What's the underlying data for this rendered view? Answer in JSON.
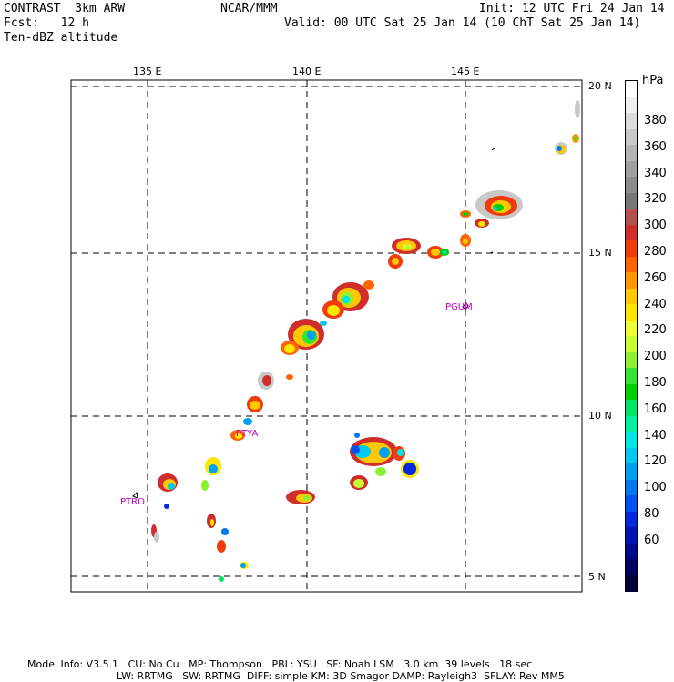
{
  "header": {
    "left_line1": "CONTRAST  3km ARW",
    "left_line2": "Fcst:   12 h",
    "left_line3": "Ten-dBZ altitude",
    "center_line1": "NCAR/MMM",
    "right_line1": "Init: 12 UTC Fri 24 Jan 14",
    "right_line2": "Valid: 00 UTC Sat 25 Jan 14 (10 ChT Sat 25 Jan 14)"
  },
  "map": {
    "lon_labels": [
      "135 E",
      "140 E",
      "145 E"
    ],
    "lat_labels": [
      "20 N",
      "15 N",
      "10 N",
      "5 N"
    ],
    "stations": [
      "PGUM",
      "PTYA",
      "PTRO"
    ]
  },
  "colorbar": {
    "unit": "hPa",
    "labels": [
      "380",
      "360",
      "340",
      "320",
      "300",
      "280",
      "260",
      "240",
      "220",
      "200",
      "180",
      "160",
      "140",
      "120",
      "100",
      "80",
      "60"
    ],
    "colors": [
      "#ffffff",
      "#f0f0f0",
      "#dcdcdc",
      "#c8c8c8",
      "#b4b4b4",
      "#a0a0a0",
      "#8c8c8c",
      "#787878",
      "#b45050",
      "#d22d2d",
      "#f03c0a",
      "#ff6400",
      "#ff9600",
      "#ffc800",
      "#ffe600",
      "#f0ff32",
      "#c8ff32",
      "#8cf032",
      "#32e632",
      "#00d200",
      "#00e664",
      "#00f0a0",
      "#00e6e6",
      "#00c8f0",
      "#00a0f0",
      "#0078f0",
      "#0050f0",
      "#0028dc",
      "#0014b4",
      "#00088c",
      "#000064",
      "#00003c"
    ]
  },
  "footer": {
    "line1_items": [
      "Model Info: V3.5.1",
      "CU: No Cu",
      "MP: Thompson",
      "PBL: YSU",
      "SF: Noah LSM",
      "3.0 km",
      "39 levels",
      "18 sec"
    ],
    "line2_items": [
      "LW: RRTMG",
      "SW: RRTMG",
      "DIFF: simple",
      "KM: 3D Smagor",
      "DAMP: Rayleigh3",
      "SFLAY: Rev MM5"
    ]
  }
}
